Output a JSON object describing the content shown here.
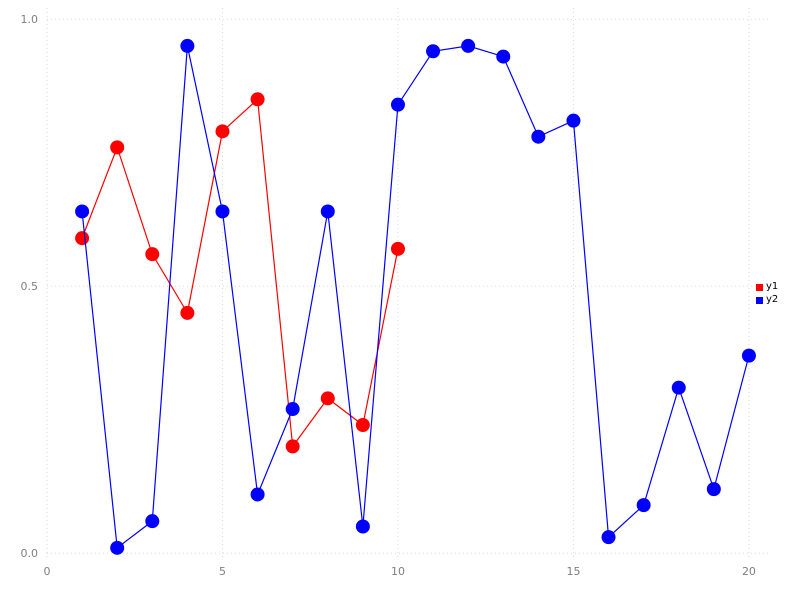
{
  "chart_data": {
    "type": "line",
    "title": "",
    "xlabel": "",
    "ylabel": "",
    "xlim": [
      0,
      20.6
    ],
    "ylim": [
      -0.009,
      1.021
    ],
    "x_ticks": [
      0,
      5,
      10,
      15,
      20
    ],
    "x_tick_labels": [
      "0",
      "5",
      "10",
      "15",
      "20"
    ],
    "y_ticks": [
      0.0,
      0.5,
      1.0
    ],
    "y_tick_labels": [
      "0.0",
      "0.5",
      "1.0"
    ],
    "grid": "dotted",
    "grid_color": "#d9d9d9",
    "legend_position": "right",
    "marker": "circle",
    "marker_radius": 7,
    "series": [
      {
        "name": "y1",
        "color": "#ff0000",
        "x": [
          1,
          2,
          3,
          4,
          5,
          6,
          7,
          8,
          9,
          10
        ],
        "y": [
          0.59,
          0.76,
          0.56,
          0.45,
          0.79,
          0.85,
          0.2,
          0.29,
          0.24,
          0.57
        ]
      },
      {
        "name": "y2",
        "color": "#0000ff",
        "x": [
          1,
          2,
          3,
          4,
          5,
          6,
          7,
          8,
          9,
          10,
          11,
          12,
          13,
          14,
          15,
          16,
          17,
          18,
          19,
          20
        ],
        "y": [
          0.64,
          0.01,
          0.06,
          0.95,
          0.64,
          0.11,
          0.27,
          0.64,
          0.05,
          0.84,
          0.94,
          0.95,
          0.93,
          0.78,
          0.81,
          0.03,
          0.09,
          0.31,
          0.12,
          0.37
        ]
      }
    ]
  }
}
